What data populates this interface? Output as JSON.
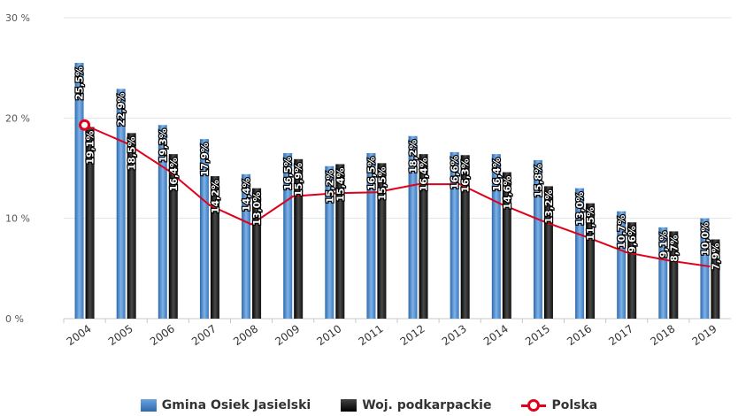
{
  "chart_data": {
    "type": "bar",
    "categories": [
      "2004",
      "2005",
      "2006",
      "2007",
      "2008",
      "2009",
      "2010",
      "2011",
      "2012",
      "2013",
      "2014",
      "2015",
      "2016",
      "2017",
      "2018",
      "2019"
    ],
    "series": [
      {
        "name": "Gmina Osiek Jasielski",
        "kind": "bar",
        "color": "#3f7fc4",
        "values": [
          25.5,
          22.9,
          19.3,
          17.9,
          14.4,
          16.5,
          15.2,
          16.5,
          18.2,
          16.6,
          16.4,
          15.8,
          13.0,
          10.7,
          9.1,
          10.0
        ],
        "labels": [
          "25,5%",
          "22,9%",
          "19,3%",
          "17,9%",
          "14,4%",
          "16,5%",
          "15,2%",
          "16,5%",
          "18,2%",
          "16,6%",
          "16,4%",
          "15,8%",
          "13,0%",
          "10,7%",
          "9,1%",
          "10,0%"
        ]
      },
      {
        "name": "Woj. podkarpackie",
        "kind": "bar",
        "color": "#222222",
        "values": [
          19.1,
          18.5,
          16.4,
          14.2,
          13.0,
          15.9,
          15.4,
          15.5,
          16.4,
          16.3,
          14.6,
          13.2,
          11.5,
          9.6,
          8.7,
          7.9
        ],
        "labels": [
          "19,1%",
          "18,5%",
          "16,4%",
          "14,2%",
          "13,0%",
          "15,9%",
          "15,4%",
          "15,5%",
          "16,4%",
          "16,3%",
          "14,6%",
          "13,2%",
          "11,5%",
          "9,6%",
          "8,7%",
          "7,9%"
        ]
      },
      {
        "name": "Polska",
        "kind": "line",
        "color": "#e0001a",
        "values": [
          19.3,
          17.5,
          14.8,
          11.3,
          9.4,
          12.2,
          12.5,
          12.6,
          13.4,
          13.4,
          11.4,
          9.7,
          8.2,
          6.6,
          5.8,
          5.2
        ]
      }
    ],
    "ylim": [
      0,
      30
    ],
    "yticks": [
      "0 %",
      "10 %",
      "20 %",
      "30 %"
    ],
    "yticks_values": [
      0,
      10,
      20,
      30
    ],
    "grid": true,
    "legend_position": "bottom-center"
  },
  "legend": {
    "items": [
      {
        "label": "Gmina Osiek Jasielski",
        "color": "#3f7fc4"
      },
      {
        "label": "Woj. podkarpackie",
        "color": "#222222"
      },
      {
        "label": "Polska",
        "color": "#e0001a"
      }
    ]
  }
}
